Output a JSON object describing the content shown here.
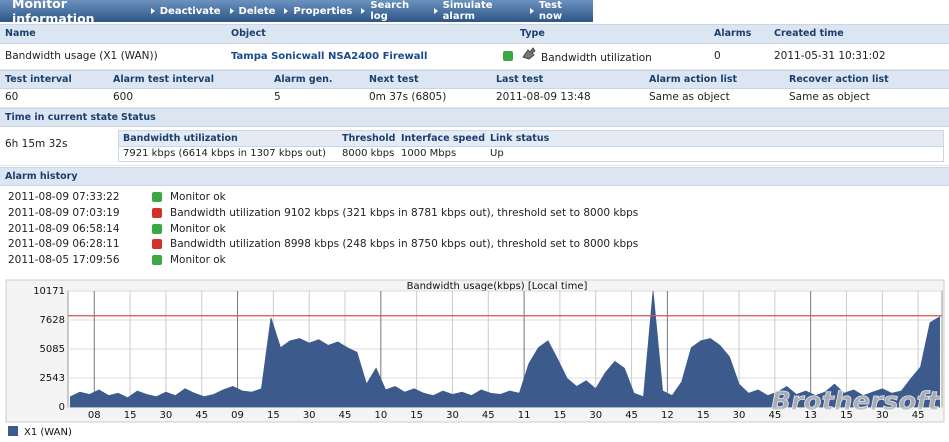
{
  "toolbar": {
    "title": "Monitor information",
    "actions": [
      "Deactivate",
      "Delete",
      "Properties",
      "Search log",
      "Simulate alarm",
      "Test now"
    ]
  },
  "summary": {
    "headers": [
      "Name",
      "Object",
      "Type",
      "Alarms",
      "Created time"
    ],
    "name": "Bandwidth usage (X1 (WAN))",
    "object": "Tampa Sonicwall NSA2400 Firewall",
    "type": "Bandwidth utilization",
    "alarms": 0,
    "created": "2011-05-31 10:31:02"
  },
  "details": {
    "headers": [
      "Test interval",
      "Alarm test interval",
      "Alarm gen.",
      "Next test",
      "Last test",
      "Alarm action list",
      "Recover action list"
    ],
    "row": [
      60,
      600,
      5,
      "0m 37s (6805)",
      "2011-08-09 13:48",
      "Same as object",
      "Same as object"
    ]
  },
  "state": {
    "headers": [
      "Time in current state",
      "Status"
    ],
    "time": "6h 15m 32s",
    "status_headers": [
      "Bandwidth utilization",
      "Threshold",
      "Interface speed",
      "Link status"
    ],
    "status_row": [
      "7921 kbps (6614 kbps in 1307 kbps out)",
      "8000 kbps",
      "1000 Mbps",
      "Up"
    ]
  },
  "alarm_history": {
    "title": "Alarm history",
    "entries": [
      {
        "time": "2011-08-09 07:33:22",
        "icon_color": "#3aa845",
        "message": "Monitor ok"
      },
      {
        "time": "2011-08-09 07:03:19",
        "icon_color": "#d3302a",
        "message": "Bandwidth utilization 9102 kbps (321 kbps in 8781 kbps out), threshold set to 8000 kbps"
      },
      {
        "time": "2011-08-09 06:58:14",
        "icon_color": "#3aa845",
        "message": "Monitor ok"
      },
      {
        "time": "2011-08-09 06:28:11",
        "icon_color": "#d3302a",
        "message": "Bandwidth utilization 8998 kbps (248 kbps in 8750 kbps out), threshold set to 8000 kbps"
      },
      {
        "time": "2011-08-05 17:09:56",
        "icon_color": "#3aa845",
        "message": "Monitor ok"
      }
    ]
  },
  "chart_data": {
    "type": "area",
    "title": "Bandwidth usage(kbps) [Local time]",
    "x": [
      470,
      474,
      478,
      482,
      486,
      490,
      494,
      498,
      502,
      506,
      510,
      514,
      518,
      522,
      526,
      530,
      534,
      538,
      542,
      546,
      550,
      554,
      558,
      562,
      566,
      570,
      574,
      578,
      582,
      586,
      590,
      594,
      598,
      602,
      606,
      610,
      614,
      618,
      622,
      626,
      630,
      634,
      638,
      642,
      646,
      650,
      654,
      658,
      662,
      666,
      670,
      674,
      678,
      682,
      686,
      690,
      694,
      698,
      702,
      706,
      710,
      714,
      718,
      722,
      726,
      730,
      734,
      738,
      742,
      746,
      750,
      754,
      758,
      762,
      766,
      770,
      774,
      778,
      782,
      786,
      790,
      794,
      798,
      802,
      806,
      810,
      814,
      818,
      822,
      826,
      830,
      834
    ],
    "series": [
      {
        "name": "X1 (WAN)",
        "color": "#3c5a8c",
        "values": [
          900,
          1300,
          1100,
          1500,
          1000,
          1200,
          800,
          1400,
          1100,
          900,
          1300,
          1000,
          1600,
          1200,
          900,
          1100,
          1500,
          1800,
          1400,
          1300,
          1600,
          7800,
          5200,
          5800,
          6000,
          5600,
          5900,
          5400,
          5700,
          5200,
          4800,
          2000,
          3400,
          1500,
          1800,
          1300,
          1600,
          1200,
          1000,
          1400,
          1100,
          1300,
          1000,
          1500,
          1200,
          1100,
          1400,
          1200,
          3800,
          5200,
          5800,
          4200,
          2500,
          1800,
          2300,
          1600,
          3000,
          4000,
          3400,
          1200,
          900,
          10171,
          1400,
          1000,
          2200,
          5200,
          5800,
          6000,
          5400,
          4400,
          2000,
          1200,
          1500,
          1000,
          1300,
          1800,
          1100,
          1400,
          1000,
          1300,
          2000,
          1200,
          1500,
          1000,
          1300,
          1600,
          1200,
          1400,
          2500,
          3500,
          7400,
          7900
        ]
      }
    ],
    "xlim": [
      469,
      835
    ],
    "xticks": [
      {
        "value": 480,
        "label": "08"
      },
      {
        "value": 495,
        "label": "15"
      },
      {
        "value": 510,
        "label": "30"
      },
      {
        "value": 525,
        "label": "45"
      },
      {
        "value": 540,
        "label": "09"
      },
      {
        "value": 555,
        "label": "15"
      },
      {
        "value": 570,
        "label": "30"
      },
      {
        "value": 585,
        "label": "45"
      },
      {
        "value": 600,
        "label": "10"
      },
      {
        "value": 615,
        "label": "15"
      },
      {
        "value": 630,
        "label": "30"
      },
      {
        "value": 645,
        "label": "45"
      },
      {
        "value": 660,
        "label": "11"
      },
      {
        "value": 675,
        "label": "15"
      },
      {
        "value": 690,
        "label": "30"
      },
      {
        "value": 705,
        "label": "45"
      },
      {
        "value": 720,
        "label": "12"
      },
      {
        "value": 735,
        "label": "15"
      },
      {
        "value": 750,
        "label": "30"
      },
      {
        "value": 765,
        "label": "45"
      },
      {
        "value": 780,
        "label": "13"
      },
      {
        "value": 795,
        "label": "15"
      },
      {
        "value": 810,
        "label": "30"
      },
      {
        "value": 825,
        "label": "45"
      }
    ],
    "ylim": [
      0,
      10171
    ],
    "yticks": [
      0,
      2543,
      5085,
      7628,
      10171
    ],
    "threshold": 8000,
    "threshold_color": "#d9534f",
    "grid": true
  },
  "watermark": "Brothersoft"
}
